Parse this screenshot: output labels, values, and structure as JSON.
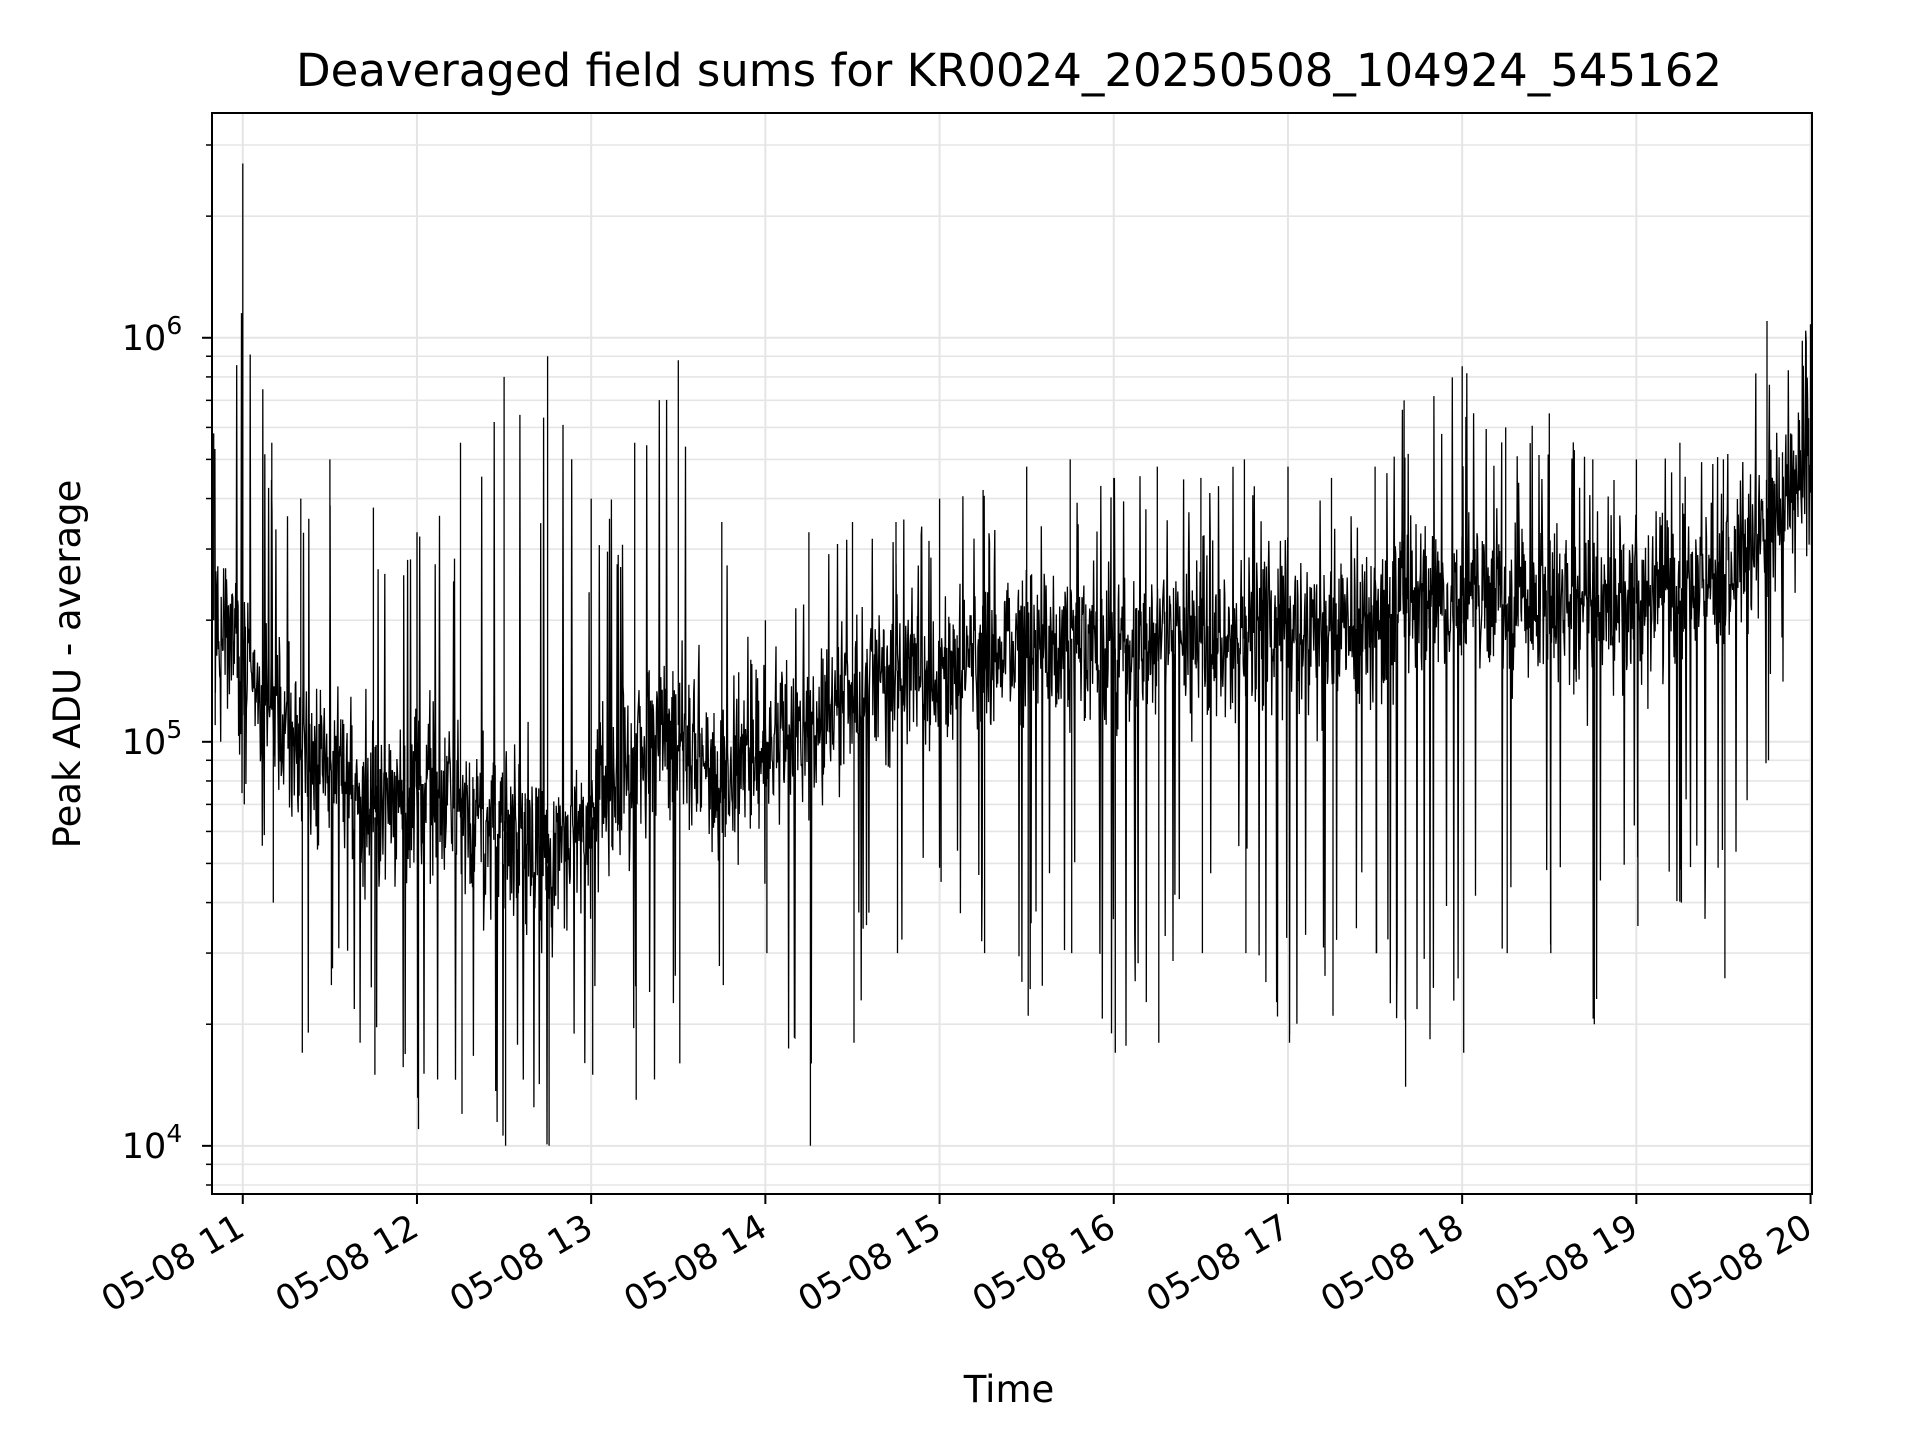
{
  "chart_data": {
    "type": "line",
    "title": "Deaveraged field sums for KR0024_20250508_104924_545162",
    "xlabel": "Time",
    "ylabel": "Peak ADU - average",
    "y_scale": "log",
    "ylim": [
      7600,
      3600000
    ],
    "xlim": [
      "2025-05-08 10:49:24",
      "2025-05-08 20:00:30"
    ],
    "grid": true,
    "line_color": "#000000",
    "grid_color": "#e5e5e5",
    "x_ticks": [
      "05-08 11",
      "05-08 12",
      "05-08 13",
      "05-08 14",
      "05-08 15",
      "05-08 16",
      "05-08 17",
      "05-08 18",
      "05-08 19",
      "05-08 20"
    ],
    "y_ticks": [
      {
        "value": 10000,
        "base": "10",
        "exp": "4"
      },
      {
        "value": 100000,
        "base": "10",
        "exp": "5"
      },
      {
        "value": 1000000,
        "base": "10",
        "exp": "6"
      }
    ],
    "series": [
      {
        "values_envelope": [
          {
            "time": "2025-05-08 10:50",
            "typical": 200000,
            "low": 110000,
            "high": 580000
          },
          {
            "time": "2025-05-08 11:00",
            "typical": 180000,
            "low": 70000,
            "high": 2700000
          },
          {
            "time": "2025-05-08 11:10",
            "typical": 120000,
            "low": 40000,
            "high": 550000
          },
          {
            "time": "2025-05-08 11:20",
            "typical": 90000,
            "low": 17000,
            "high": 400000
          },
          {
            "time": "2025-05-08 11:30",
            "typical": 85000,
            "low": 25000,
            "high": 500000
          },
          {
            "time": "2025-05-08 11:45",
            "typical": 65000,
            "low": 15000,
            "high": 380000
          },
          {
            "time": "2025-05-08 12:00",
            "typical": 75000,
            "low": 11000,
            "high": 330000
          },
          {
            "time": "2025-05-08 12:15",
            "typical": 65000,
            "low": 12000,
            "high": 550000
          },
          {
            "time": "2025-05-08 12:30",
            "typical": 60000,
            "low": 10000,
            "high": 800000
          },
          {
            "time": "2025-05-08 12:45",
            "typical": 50000,
            "low": 10000,
            "high": 900000
          },
          {
            "time": "2025-05-08 13:00",
            "typical": 65000,
            "low": 15000,
            "high": 400000
          },
          {
            "time": "2025-05-08 13:15",
            "typical": 90000,
            "low": 13000,
            "high": 550000
          },
          {
            "time": "2025-05-08 13:30",
            "typical": 110000,
            "low": 16000,
            "high": 880000
          },
          {
            "time": "2025-05-08 13:45",
            "typical": 75000,
            "low": 25000,
            "high": 350000
          },
          {
            "time": "2025-05-08 14:00",
            "typical": 100000,
            "low": 30000,
            "high": 200000
          },
          {
            "time": "2025-05-08 14:15",
            "typical": 110000,
            "low": 10000,
            "high": 330000
          },
          {
            "time": "2025-05-08 14:30",
            "typical": 130000,
            "low": 18000,
            "high": 350000
          },
          {
            "time": "2025-05-08 14:45",
            "typical": 150000,
            "low": 30000,
            "high": 350000
          },
          {
            "time": "2025-05-08 15:00",
            "typical": 150000,
            "low": 45000,
            "high": 400000
          },
          {
            "time": "2025-05-08 15:15",
            "typical": 160000,
            "low": 30000,
            "high": 420000
          },
          {
            "time": "2025-05-08 15:30",
            "typical": 170000,
            "low": 21000,
            "high": 480000
          },
          {
            "time": "2025-05-08 15:45",
            "typical": 180000,
            "low": 30000,
            "high": 500000
          },
          {
            "time": "2025-05-08 16:00",
            "typical": 170000,
            "low": 17000,
            "high": 450000
          },
          {
            "time": "2025-05-08 16:15",
            "typical": 180000,
            "low": 18000,
            "high": 480000
          },
          {
            "time": "2025-05-08 16:30",
            "typical": 190000,
            "low": 30000,
            "high": 450000
          },
          {
            "time": "2025-05-08 16:45",
            "typical": 180000,
            "low": 30000,
            "high": 500000
          },
          {
            "time": "2025-05-08 17:00",
            "typical": 200000,
            "low": 18000,
            "high": 480000
          },
          {
            "time": "2025-05-08 17:15",
            "typical": 190000,
            "low": 21000,
            "high": 450000
          },
          {
            "time": "2025-05-08 17:30",
            "typical": 200000,
            "low": 30000,
            "high": 480000
          },
          {
            "time": "2025-05-08 17:40",
            "typical": 220000,
            "low": 14000,
            "high": 700000
          },
          {
            "time": "2025-05-08 18:00",
            "typical": 230000,
            "low": 17000,
            "high": 850000
          },
          {
            "time": "2025-05-08 18:15",
            "typical": 220000,
            "low": 30000,
            "high": 600000
          },
          {
            "time": "2025-05-08 18:30",
            "typical": 230000,
            "low": 30000,
            "high": 650000
          },
          {
            "time": "2025-05-08 18:45",
            "typical": 230000,
            "low": 20000,
            "high": 500000
          },
          {
            "time": "2025-05-08 19:00",
            "typical": 220000,
            "low": 35000,
            "high": 500000
          },
          {
            "time": "2025-05-08 19:15",
            "typical": 240000,
            "low": 40000,
            "high": 550000
          },
          {
            "time": "2025-05-08 19:30",
            "typical": 260000,
            "low": 26000,
            "high": 500000
          },
          {
            "time": "2025-05-08 19:45",
            "typical": 350000,
            "low": 90000,
            "high": 1100000
          },
          {
            "time": "2025-05-08 20:00",
            "typical": 500000,
            "low": 260000,
            "high": 1080000
          }
        ]
      }
    ]
  }
}
